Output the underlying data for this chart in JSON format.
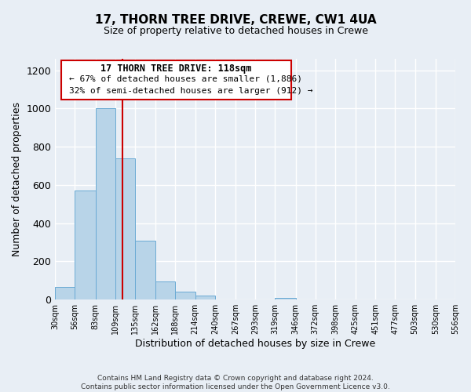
{
  "title": "17, THORN TREE DRIVE, CREWE, CW1 4UA",
  "subtitle": "Size of property relative to detached houses in Crewe",
  "xlabel": "Distribution of detached houses by size in Crewe",
  "ylabel": "Number of detached properties",
  "bar_color": "#b8d4e8",
  "bar_edge_color": "#6aaad4",
  "background_color": "#e8eef5",
  "plot_bg_color": "#e8eef5",
  "grid_color": "#ffffff",
  "bin_edges": [
    30,
    56,
    83,
    109,
    135,
    162,
    188,
    214,
    240,
    267,
    293,
    319,
    346,
    372,
    398,
    425,
    451,
    477,
    503,
    530,
    556
  ],
  "bar_heights": [
    65,
    570,
    1000,
    740,
    310,
    95,
    40,
    20,
    0,
    0,
    0,
    10,
    0,
    0,
    0,
    0,
    0,
    0,
    0,
    0
  ],
  "property_size": 118,
  "vline_color": "#cc0000",
  "box_text_line1": "17 THORN TREE DRIVE: 118sqm",
  "box_text_line2": "← 67% of detached houses are smaller (1,886)",
  "box_text_line3": "32% of semi-detached houses are larger (912) →",
  "box_edge_color": "#cc0000",
  "ylim": [
    0,
    1260
  ],
  "yticks": [
    0,
    200,
    400,
    600,
    800,
    1000,
    1200
  ],
  "tick_labels": [
    "30sqm",
    "56sqm",
    "83sqm",
    "109sqm",
    "135sqm",
    "162sqm",
    "188sqm",
    "214sqm",
    "240sqm",
    "267sqm",
    "293sqm",
    "319sqm",
    "346sqm",
    "372sqm",
    "398sqm",
    "425sqm",
    "451sqm",
    "477sqm",
    "503sqm",
    "530sqm",
    "556sqm"
  ],
  "footer_line1": "Contains HM Land Registry data © Crown copyright and database right 2024.",
  "footer_line2": "Contains public sector information licensed under the Open Government Licence v3.0."
}
